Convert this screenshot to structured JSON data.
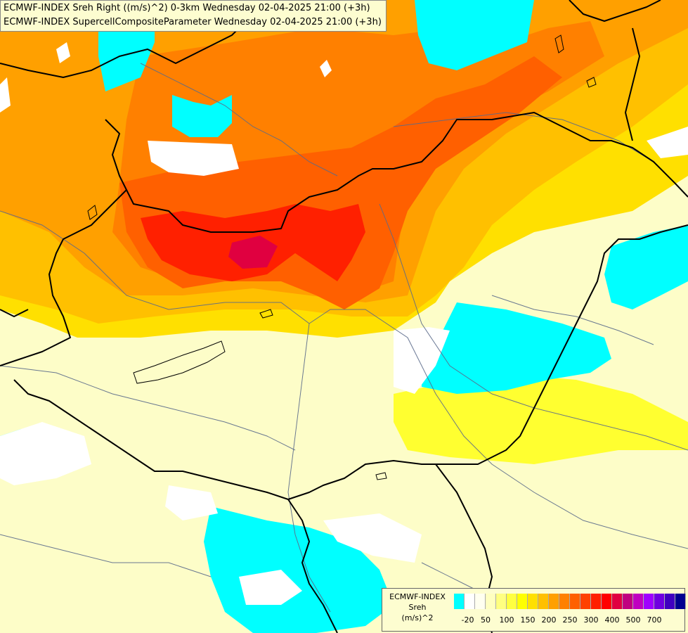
{
  "title_lines": [
    "ECMWF-INDEX Sreh Right ((m/s)^2) 0-3km Wednesday 02-04-2025 21:00 (+3h)",
    "ECMWF-INDEX SupercellCompositeParameter Wednesday 02-04-2025 21:00 (+3h)"
  ],
  "legend": {
    "title_lines": [
      "ECMWF-INDEX",
      "Sreh",
      "(m/s)^2"
    ],
    "colors": [
      "#00ffff",
      "#ffffff",
      "#fffff0",
      "#ffffc0",
      "#ffff80",
      "#ffff40",
      "#ffff00",
      "#ffe000",
      "#ffc000",
      "#ffa000",
      "#ff8000",
      "#ff6000",
      "#ff4000",
      "#ff2000",
      "#ff0000",
      "#e00040",
      "#c00080",
      "#c000c0",
      "#a000ff",
      "#7000e0",
      "#4000c0",
      "#000090"
    ],
    "labels": [
      "-20",
      "50",
      "100",
      "150",
      "200",
      "250",
      "300",
      "400",
      "500",
      "700"
    ]
  },
  "map_colors": {
    "background": "#fdfdc8",
    "pale": "#ffffc0",
    "yellow": "#ffff00",
    "gold": "#ffe000",
    "amber": "#ffc000",
    "orange": "#ffa000",
    "dark_orange": "#ff8000",
    "red_orange": "#ff6000",
    "red": "#ff2000",
    "crimson": "#e00040",
    "cyan": "#00ffff",
    "white": "#ffffff",
    "border": "#000000",
    "river": "#5a6a8a"
  }
}
